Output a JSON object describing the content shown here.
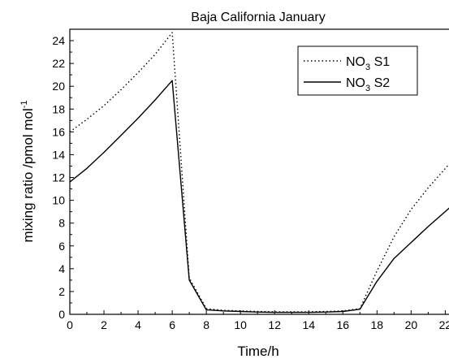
{
  "chart_data": {
    "type": "line",
    "title": "Baja California January",
    "xlabel": "Time/h",
    "ylabel": "mixing ratio /pmol mol",
    "ylabel_superscript": "-1",
    "xlim": [
      0,
      22.6
    ],
    "ylim": [
      0,
      25
    ],
    "xticks": [
      0,
      2,
      4,
      6,
      8,
      10,
      12,
      14,
      16,
      18,
      20,
      22
    ],
    "yticks": [
      0,
      2,
      4,
      6,
      8,
      10,
      12,
      14,
      16,
      18,
      20,
      22,
      24
    ],
    "grid": false,
    "legend_position": "top-right",
    "series": [
      {
        "name": "NO3 S1",
        "label_main": "NO",
        "label_sub": "3",
        "label_rest": " S1",
        "style": "dotted",
        "color": "#000000",
        "x": [
          0,
          1,
          2,
          3,
          4,
          5,
          6,
          7,
          8,
          9,
          10,
          11,
          12,
          13,
          14,
          15,
          16,
          17,
          18,
          19,
          20,
          21,
          22.6
        ],
        "y": [
          16.0,
          17.1,
          18.3,
          19.7,
          21.2,
          22.8,
          24.7,
          3.2,
          0.5,
          0.35,
          0.3,
          0.25,
          0.22,
          0.22,
          0.22,
          0.25,
          0.3,
          0.5,
          3.8,
          6.8,
          9.2,
          11.1,
          13.8
        ]
      },
      {
        "name": "NO3 S2",
        "label_main": "NO",
        "label_sub": "3",
        "label_rest": " S2",
        "style": "solid",
        "color": "#000000",
        "x": [
          0,
          1,
          2,
          3,
          4,
          5,
          6,
          7,
          8,
          9,
          10,
          11,
          12,
          13,
          14,
          15,
          16,
          17,
          18,
          19,
          20,
          21,
          22.6
        ],
        "y": [
          11.6,
          12.8,
          14.2,
          15.7,
          17.2,
          18.8,
          20.5,
          3.0,
          0.4,
          0.3,
          0.25,
          0.2,
          0.17,
          0.17,
          0.17,
          0.2,
          0.25,
          0.45,
          2.9,
          4.9,
          6.3,
          7.7,
          9.8
        ]
      }
    ]
  }
}
